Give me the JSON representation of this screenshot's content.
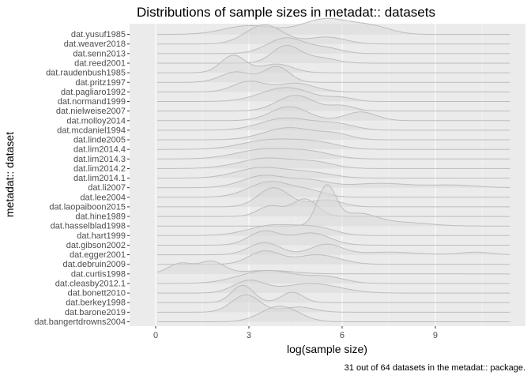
{
  "chart_data": {
    "type": "ridgeline",
    "title": "Distributions of sample sizes in metadat:: datasets",
    "xlabel": "log(sample size)",
    "ylabel": "metadat:: dataset",
    "caption": "31 out of 64 datasets in the metadat:: package.",
    "xlim": [
      -0.6,
      11.9
    ],
    "x_ticks": [
      0,
      3,
      6,
      9
    ],
    "grid": true,
    "colors": {
      "panel": "#ebebeb",
      "grid_major": "#ffffff",
      "grid_minor": "#f5f5f5",
      "ridge_fill": "#d9d9d9",
      "ridge_line": "#bdbdbd",
      "text": "#4d4d4d"
    },
    "series": [
      {
        "name": "dat.bangertdrowns2004",
        "peaks": [
          [
            4.0,
            0.6,
            0.9
          ]
        ]
      },
      {
        "name": "dat.barone2019",
        "peaks": [
          [
            2.9,
            0.45,
            1.0
          ],
          [
            4.6,
            0.5,
            0.3
          ]
        ]
      },
      {
        "name": "dat.berkey1998",
        "peaks": [
          [
            2.8,
            0.35,
            1.0
          ],
          [
            4.4,
            0.35,
            0.6
          ]
        ]
      },
      {
        "name": "dat.bonett2010",
        "peaks": [
          [
            3.0,
            0.5,
            0.7
          ],
          [
            5.0,
            0.9,
            0.55
          ]
        ]
      },
      {
        "name": "dat.cleasby2012.1",
        "peaks": [
          [
            3.6,
            0.9,
            0.75
          ],
          [
            5.5,
            0.6,
            0.35
          ]
        ]
      },
      {
        "name": "dat.curtis1998",
        "peaks": [
          [
            0.8,
            0.4,
            0.6
          ],
          [
            1.8,
            0.4,
            0.7
          ],
          [
            3.6,
            0.8,
            0.2
          ]
        ]
      },
      {
        "name": "dat.debruin2009",
        "peaks": [
          [
            3.5,
            0.5,
            0.75
          ],
          [
            5.2,
            0.7,
            0.55
          ]
        ]
      },
      {
        "name": "dat.egger2001",
        "peaks": [
          [
            3.5,
            0.5,
            0.7
          ],
          [
            5.5,
            0.5,
            0.6
          ],
          [
            7.5,
            0.9,
            0.15
          ],
          [
            10.3,
            0.5,
            0.15
          ]
        ]
      },
      {
        "name": "dat.gibson2002",
        "peaks": [
          [
            3.5,
            0.5,
            0.8
          ],
          [
            5.0,
            0.6,
            0.7
          ]
        ]
      },
      {
        "name": "dat.hart1999",
        "peaks": [
          [
            3.8,
            0.8,
            0.6
          ],
          [
            5.2,
            0.6,
            0.4
          ]
        ]
      },
      {
        "name": "dat.hasselblad1998",
        "peaks": [
          [
            5.5,
            0.3,
            2.2
          ],
          [
            6.5,
            0.6,
            0.7
          ],
          [
            8.0,
            0.8,
            0.2
          ]
        ]
      },
      {
        "name": "dat.hine1989",
        "peaks": [
          [
            3.7,
            0.4,
            0.6
          ],
          [
            4.8,
            0.4,
            1.0
          ]
        ]
      },
      {
        "name": "dat.laopaiboon2015",
        "peaks": [
          [
            3.8,
            0.5,
            1.1
          ],
          [
            5.5,
            0.5,
            0.4
          ]
        ]
      },
      {
        "name": "dat.lee2004",
        "peaks": [
          [
            3.7,
            0.7,
            0.9
          ],
          [
            5.0,
            0.5,
            0.3
          ]
        ]
      },
      {
        "name": "dat.li2007",
        "peaks": [
          [
            3.5,
            0.7,
            0.7
          ],
          [
            5.0,
            0.6,
            0.4
          ],
          [
            7.2,
            0.9,
            0.25
          ],
          [
            9.5,
            0.8,
            0.15
          ]
        ]
      },
      {
        "name": "dat.lim2014.1",
        "peaks": [
          [
            3.4,
            0.8,
            0.6
          ],
          [
            5.0,
            0.7,
            0.3
          ]
        ]
      },
      {
        "name": "dat.lim2014.2",
        "peaks": [
          [
            3.6,
            0.9,
            0.6
          ],
          [
            5.2,
            0.6,
            0.3
          ]
        ]
      },
      {
        "name": "dat.lim2014.3",
        "peaks": [
          [
            3.5,
            0.9,
            0.55
          ],
          [
            5.0,
            0.7,
            0.35
          ]
        ]
      },
      {
        "name": "dat.lim2014.4",
        "peaks": [
          [
            3.7,
            0.9,
            0.55
          ],
          [
            5.2,
            0.7,
            0.35
          ]
        ]
      },
      {
        "name": "dat.linde2005",
        "peaks": [
          [
            4.3,
            0.8,
            0.7
          ],
          [
            5.8,
            0.5,
            0.3
          ]
        ]
      },
      {
        "name": "dat.mcdaniel1994",
        "peaks": [
          [
            4.2,
            0.8,
            0.7
          ],
          [
            5.8,
            0.6,
            0.35
          ]
        ]
      },
      {
        "name": "dat.molloy2014",
        "peaks": [
          [
            4.3,
            0.6,
            0.8
          ],
          [
            6.6,
            0.5,
            0.5
          ]
        ]
      },
      {
        "name": "dat.nielweise2007",
        "peaks": [
          [
            4.5,
            0.6,
            0.9
          ],
          [
            6.0,
            0.4,
            0.3
          ]
        ]
      },
      {
        "name": "dat.normand1999",
        "peaks": [
          [
            4.2,
            0.8,
            0.8
          ],
          [
            6.0,
            0.4,
            0.2
          ]
        ]
      },
      {
        "name": "dat.pagliaro1992",
        "peaks": [
          [
            3.0,
            0.5,
            0.6
          ],
          [
            4.5,
            0.6,
            0.5
          ]
        ]
      },
      {
        "name": "dat.pritz1997",
        "peaks": [
          [
            2.6,
            0.5,
            0.6
          ],
          [
            3.9,
            0.4,
            0.9
          ]
        ]
      },
      {
        "name": "dat.raudenbush1985",
        "peaks": [
          [
            2.5,
            0.4,
            1.0
          ],
          [
            3.9,
            0.5,
            0.5
          ]
        ]
      },
      {
        "name": "dat.reed2001",
        "peaks": [
          [
            4.2,
            0.45,
            1.0
          ],
          [
            5.3,
            0.5,
            0.3
          ]
        ]
      },
      {
        "name": "dat.senn2013",
        "peaks": [
          [
            4.2,
            0.6,
            0.9
          ],
          [
            5.5,
            0.5,
            0.3
          ]
        ]
      },
      {
        "name": "dat.weaver2018",
        "peaks": [
          [
            3.5,
            0.6,
            1.1
          ],
          [
            5.5,
            0.6,
            0.4
          ]
        ]
      },
      {
        "name": "dat.yusuf1985",
        "peaks": [
          [
            3.0,
            0.8,
            0.5
          ],
          [
            5.5,
            0.8,
            0.9
          ],
          [
            7.0,
            0.6,
            0.4
          ]
        ]
      }
    ]
  }
}
